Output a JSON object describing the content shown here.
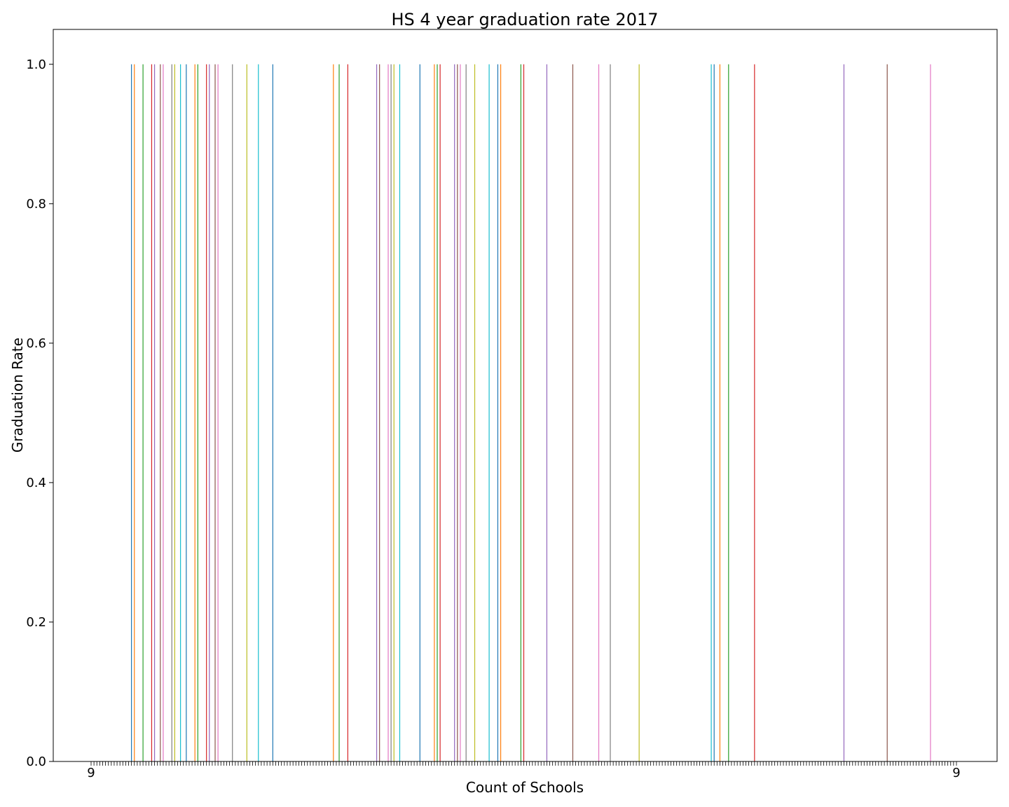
{
  "chart_data": {
    "type": "bar",
    "title": "HS 4 year graduation rate 2017",
    "xlabel": "Count of Schools",
    "ylabel": "Graduation Rate",
    "ylim": [
      0,
      1.05
    ],
    "yticks": [
      "0.0",
      "0.2",
      "0.4",
      "0.6",
      "0.8",
      "1.0"
    ],
    "xlim": [
      0,
      300
    ],
    "grid": false,
    "legend": "none",
    "palette": [
      "#1f77b4",
      "#ff7f0e",
      "#2ca02c",
      "#d62728",
      "#9467bd",
      "#8c564b",
      "#e377c2",
      "#7f7f7f",
      "#bcbd22",
      "#17becf"
    ],
    "xtick_first": "9",
    "xtick_last": "9",
    "x": [
      14,
      15,
      18,
      21,
      22,
      24,
      25,
      28,
      29,
      31,
      33,
      36,
      37,
      40,
      41,
      43,
      44,
      49,
      54,
      58,
      63,
      84,
      86,
      89,
      99,
      100,
      103,
      104,
      105,
      107,
      114,
      119,
      120,
      121,
      126,
      127,
      128,
      130,
      133,
      138,
      141,
      142,
      149,
      150,
      158,
      167,
      176,
      180,
      190,
      215,
      216,
      218,
      221,
      230,
      261,
      276,
      291
    ],
    "values": [
      1,
      1,
      1,
      1,
      1,
      1,
      1,
      1,
      1,
      1,
      1,
      1,
      1,
      1,
      1,
      1,
      1,
      1,
      1,
      1,
      1,
      1,
      1,
      1,
      1,
      1,
      1,
      1,
      1,
      1,
      1,
      1,
      1,
      1,
      1,
      1,
      1,
      1,
      1,
      1,
      1,
      1,
      1,
      1,
      1,
      1,
      1,
      1,
      1,
      1,
      1,
      1,
      1,
      1,
      1,
      1,
      1
    ]
  }
}
